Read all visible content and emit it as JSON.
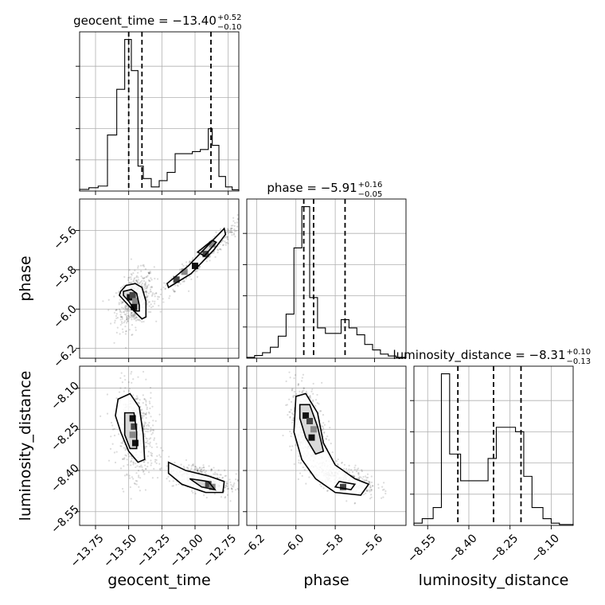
{
  "chart_data": {
    "type": "corner",
    "parameters": [
      {
        "name": "geocent_time",
        "axis_label": "geocent_time",
        "title": "geocent_time = −13.40",
        "title_sup": "+0.52",
        "title_sub": "−0.10",
        "range": [
          -13.87,
          -12.67
        ],
        "ticks": [
          -13.75,
          -13.5,
          -13.25,
          -13.0,
          -12.75
        ],
        "tick_labels": [
          "−13.75",
          "−13.50",
          "−13.25",
          "−13.00",
          "−12.75"
        ],
        "quantiles": [
          -13.5,
          -13.4,
          -12.88
        ],
        "hist_edges": [
          -13.87,
          -13.8,
          -13.73,
          -13.66,
          -13.59,
          -13.53,
          -13.48,
          -13.43,
          -13.39,
          -13.33,
          -13.27,
          -13.21,
          -13.15,
          -13.08,
          -13.02,
          -12.96,
          -12.9,
          -12.87,
          -12.82,
          -12.77,
          -12.72,
          -12.67
        ],
        "hist_counts": [
          0.4,
          0.8,
          1.2,
          13.5,
          24.5,
          36.5,
          29.0,
          6.0,
          3.0,
          1.0,
          2.5,
          4.5,
          9.0,
          9.0,
          9.5,
          10.0,
          15.0,
          11.0,
          3.5,
          1.0,
          0.3
        ]
      },
      {
        "name": "phase",
        "axis_label": "phase",
        "title": "phase = −5.91",
        "title_sup": "+0.16",
        "title_sub": "−0.05",
        "range": [
          -6.25,
          -5.44
        ],
        "ticks": [
          -6.2,
          -6.0,
          -5.8,
          -5.6
        ],
        "tick_labels": [
          "−6.2",
          "−6.0",
          "−5.8",
          "−5.6"
        ],
        "quantiles": [
          -5.96,
          -5.91,
          -5.75
        ],
        "hist_edges": [
          -6.25,
          -6.21,
          -6.17,
          -6.13,
          -6.09,
          -6.05,
          -6.01,
          -5.97,
          -5.93,
          -5.89,
          -5.85,
          -5.81,
          -5.77,
          -5.73,
          -5.69,
          -5.65,
          -5.61,
          -5.57,
          -5.53,
          -5.49,
          -5.44
        ],
        "hist_counts": [
          0.3,
          1.0,
          2.0,
          4.0,
          8.0,
          16.0,
          40.0,
          55.0,
          22.0,
          11.0,
          9.0,
          9.0,
          14.0,
          11.0,
          8.5,
          5.0,
          3.0,
          1.5,
          0.8,
          0.3
        ]
      },
      {
        "name": "luminosity_distance",
        "axis_label": "luminosity_distance",
        "title": "luminosity_distance = −8.31",
        "title_sup": "+0.10",
        "title_sub": "−0.13",
        "range": [
          -8.6,
          -8.02
        ],
        "ticks": [
          -8.55,
          -8.4,
          -8.25,
          -8.1
        ],
        "tick_labels": [
          "−8.55",
          "−8.40",
          "−8.25",
          "−8.10"
        ],
        "quantiles": [
          -8.44,
          -8.31,
          -8.21
        ],
        "hist_edges": [
          -8.6,
          -8.57,
          -8.53,
          -8.5,
          -8.47,
          -8.43,
          -8.4,
          -8.37,
          -8.33,
          -8.3,
          -8.27,
          -8.23,
          -8.2,
          -8.17,
          -8.13,
          -8.1,
          -8.07,
          -8.02
        ],
        "hist_counts": [
          0.5,
          1.5,
          4.0,
          34.0,
          16.0,
          10.0,
          10.0,
          10.0,
          15.0,
          22.0,
          22.0,
          21.0,
          11.0,
          4.0,
          1.5,
          0.5,
          0.2
        ]
      }
    ],
    "pairs": [
      {
        "x": "geocent_time",
        "y": "phase",
        "clusters": [
          {
            "cx": -13.45,
            "cy": -5.95,
            "sx": 0.07,
            "sy": 0.07,
            "rho": 0.35,
            "count": 520
          },
          {
            "cx": -12.95,
            "cy": -5.74,
            "sx": 0.17,
            "sy": 0.11,
            "rho": 0.97,
            "count": 360
          }
        ],
        "contours": [
          [
            [
              -13.56,
              -5.91
            ],
            [
              -13.52,
              -5.88
            ],
            [
              -13.45,
              -5.87
            ],
            [
              -13.4,
              -5.89
            ],
            [
              -13.37,
              -5.96
            ],
            [
              -13.37,
              -6.04
            ],
            [
              -13.4,
              -6.05
            ],
            [
              -13.46,
              -6.01
            ],
            [
              -13.53,
              -5.96
            ],
            [
              -13.57,
              -5.93
            ]
          ],
          [
            [
              -13.54,
              -5.91
            ],
            [
              -13.48,
              -5.9
            ],
            [
              -13.44,
              -5.92
            ],
            [
              -13.42,
              -5.98
            ],
            [
              -13.42,
              -6.01
            ],
            [
              -13.45,
              -6.01
            ],
            [
              -13.5,
              -5.96
            ],
            [
              -13.54,
              -5.93
            ]
          ],
          [
            [
              -13.21,
              -5.87
            ],
            [
              -13.05,
              -5.78
            ],
            [
              -12.88,
              -5.66
            ],
            [
              -12.78,
              -5.59
            ],
            [
              -12.77,
              -5.62
            ],
            [
              -12.86,
              -5.7
            ],
            [
              -13.03,
              -5.82
            ],
            [
              -13.2,
              -5.89
            ]
          ],
          [
            [
              -12.98,
              -5.71
            ],
            [
              -12.87,
              -5.65
            ],
            [
              -12.84,
              -5.66
            ],
            [
              -12.93,
              -5.73
            ]
          ]
        ],
        "pixels": [
          [
            -13.49,
            -5.94
          ],
          [
            -13.47,
            -5.93
          ],
          [
            -13.45,
            -5.96
          ],
          [
            -13.46,
            -5.99
          ],
          [
            -13.14,
            -5.85
          ],
          [
            -13.08,
            -5.81
          ],
          [
            -13.0,
            -5.78
          ],
          [
            -12.92,
            -5.72
          ],
          [
            -12.87,
            -5.67
          ]
        ]
      },
      {
        "x": "geocent_time",
        "y": "luminosity_distance",
        "clusters": [
          {
            "cx": -13.45,
            "cy": -8.26,
            "sx": 0.07,
            "sy": 0.08,
            "rho": -0.15,
            "count": 560
          },
          {
            "cx": -12.95,
            "cy": -8.43,
            "sx": 0.13,
            "sy": 0.03,
            "rho": -0.55,
            "count": 380
          }
        ],
        "contours": [
          [
            [
              -13.58,
              -8.14
            ],
            [
              -13.49,
              -8.12
            ],
            [
              -13.42,
              -8.17
            ],
            [
              -13.39,
              -8.27
            ],
            [
              -13.38,
              -8.36
            ],
            [
              -13.43,
              -8.37
            ],
            [
              -13.5,
              -8.33
            ],
            [
              -13.56,
              -8.26
            ],
            [
              -13.6,
              -8.2
            ]
          ],
          [
            [
              -13.53,
              -8.19
            ],
            [
              -13.46,
              -8.19
            ],
            [
              -13.44,
              -8.26
            ],
            [
              -13.44,
              -8.32
            ],
            [
              -13.49,
              -8.32
            ],
            [
              -13.53,
              -8.27
            ]
          ],
          [
            [
              -13.2,
              -8.37
            ],
            [
              -13.07,
              -8.4
            ],
            [
              -12.9,
              -8.42
            ],
            [
              -12.78,
              -8.44
            ],
            [
              -12.79,
              -8.48
            ],
            [
              -12.92,
              -8.48
            ],
            [
              -13.1,
              -8.45
            ],
            [
              -13.2,
              -8.41
            ]
          ],
          [
            [
              -13.04,
              -8.43
            ],
            [
              -12.9,
              -8.44
            ],
            [
              -12.85,
              -8.47
            ],
            [
              -12.95,
              -8.46
            ]
          ]
        ],
        "pixels": [
          [
            -13.47,
            -8.21
          ],
          [
            -13.46,
            -8.24
          ],
          [
            -13.47,
            -8.27
          ],
          [
            -13.45,
            -8.3
          ],
          [
            -12.9,
            -8.45
          ],
          [
            -12.87,
            -8.46
          ]
        ]
      },
      {
        "x": "phase",
        "y": "luminosity_distance",
        "clusters": [
          {
            "cx": -5.94,
            "cy": -8.24,
            "sx": 0.045,
            "sy": 0.075,
            "rho": -0.3,
            "count": 560
          },
          {
            "cx": -5.75,
            "cy": -8.43,
            "sx": 0.08,
            "sy": 0.03,
            "rho": -0.5,
            "count": 380
          }
        ],
        "contours": [
          [
            [
              -6.0,
              -8.13
            ],
            [
              -5.95,
              -8.12
            ],
            [
              -5.89,
              -8.19
            ],
            [
              -5.86,
              -8.3
            ],
            [
              -5.8,
              -8.38
            ],
            [
              -5.7,
              -8.43
            ],
            [
              -5.63,
              -8.45
            ],
            [
              -5.67,
              -8.49
            ],
            [
              -5.8,
              -8.48
            ],
            [
              -5.9,
              -8.43
            ],
            [
              -5.97,
              -8.36
            ],
            [
              -6.01,
              -8.26
            ]
          ],
          [
            [
              -5.98,
              -8.16
            ],
            [
              -5.93,
              -8.16
            ],
            [
              -5.89,
              -8.24
            ],
            [
              -5.86,
              -8.33
            ],
            [
              -5.9,
              -8.34
            ],
            [
              -5.95,
              -8.28
            ],
            [
              -5.98,
              -8.21
            ]
          ],
          [
            [
              -5.78,
              -8.44
            ],
            [
              -5.7,
              -8.45
            ],
            [
              -5.72,
              -8.47
            ],
            [
              -5.8,
              -8.46
            ]
          ]
        ],
        "pixels": [
          [
            -5.95,
            -8.2
          ],
          [
            -5.93,
            -8.22
          ],
          [
            -5.91,
            -8.25
          ],
          [
            -5.92,
            -8.28
          ],
          [
            -5.76,
            -8.46
          ]
        ]
      }
    ]
  }
}
